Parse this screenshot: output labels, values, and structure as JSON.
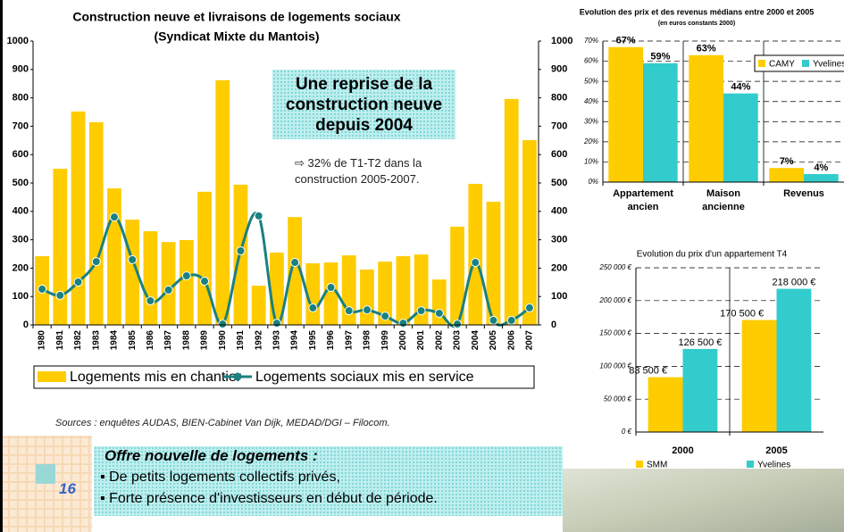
{
  "chart_data": [
    {
      "type": "bar",
      "title": "Construction neuve et livraisons de logements sociaux",
      "subtitle": "(Syndicat Mixte du Mantois)",
      "categories": [
        "1980",
        "1981",
        "1982",
        "1983",
        "1984",
        "1985",
        "1986",
        "1987",
        "1988",
        "1989",
        "1990",
        "1991",
        "1992",
        "1993",
        "1994",
        "1995",
        "1996",
        "1997",
        "1998",
        "1999",
        "2000",
        "2001",
        "2002",
        "2003",
        "2004",
        "2005",
        "2006",
        "2007"
      ],
      "series": [
        {
          "name": "Logements mis en chantier",
          "color": "#FFCC00",
          "values": [
            242,
            550,
            752,
            714,
            481,
            371,
            330,
            292,
            299,
            469,
            862,
            494,
            138,
            255,
            380,
            217,
            220,
            245,
            195,
            223,
            242,
            248,
            160,
            346,
            497,
            434,
            796,
            651
          ]
        },
        {
          "name": "Logements sociaux mis en service",
          "color": "#1A8080",
          "type": "line",
          "axis": "y2",
          "values": [
            126,
            104,
            151,
            223,
            380,
            230,
            85,
            123,
            173,
            154,
            3,
            261,
            384,
            6,
            220,
            60,
            132,
            50,
            53,
            31,
            6,
            50,
            41,
            3,
            220,
            16,
            16,
            60
          ]
        }
      ],
      "ylim": [
        0,
        1000
      ],
      "yticks": [
        0,
        100,
        200,
        300,
        400,
        500,
        600,
        700,
        800,
        900,
        1000
      ],
      "y2lim": [
        0,
        1000
      ],
      "y2ticks": [
        0,
        100,
        200,
        300,
        400,
        500,
        600,
        700,
        800,
        900,
        1000
      ],
      "grid": false,
      "legend": "bottom"
    },
    {
      "type": "bar",
      "title": "Evolution des prix et des revenus médians entre 2000 et 2005",
      "subtitle": "(en euros constants 2000)",
      "categories": [
        "Appartement ancien",
        "Maison ancienne",
        "Revenus"
      ],
      "series": [
        {
          "name": "CAMY",
          "color": "#FFCC00",
          "values": [
            67,
            63,
            7
          ],
          "value_labels": [
            "67%",
            "63%",
            "7%"
          ]
        },
        {
          "name": "Yvelines",
          "color": "#33CCCC",
          "values": [
            59,
            44,
            4
          ],
          "value_labels": [
            "59%",
            "44%",
            "4%"
          ]
        }
      ],
      "ylim": [
        0,
        70
      ],
      "yticks": [
        {
          "value": 0,
          "label": "0%"
        },
        {
          "value": 10,
          "label": "10%"
        },
        {
          "value": 20,
          "label": "20%"
        },
        {
          "value": 30,
          "label": "30%"
        },
        {
          "value": 40,
          "label": "40%"
        },
        {
          "value": 50,
          "label": "50%"
        },
        {
          "value": 60,
          "label": "60%"
        },
        {
          "value": 70,
          "label": "70%"
        }
      ],
      "grid": true,
      "legend": "top-right"
    },
    {
      "type": "bar",
      "title": "Evolution du prix d'un appartement T4",
      "categories": [
        "2000",
        "2005"
      ],
      "series": [
        {
          "name": "SMM",
          "color": "#FFCC00",
          "values": [
            83500,
            170500
          ],
          "value_labels": [
            "83 500 €",
            "170 500 €"
          ]
        },
        {
          "name": "Yvelines",
          "color": "#33CCCC",
          "values": [
            126500,
            218000
          ],
          "value_labels": [
            "126 500 €",
            "218 000 €"
          ]
        }
      ],
      "ylim": [
        0,
        250000
      ],
      "yticks": [
        {
          "value": 0,
          "label": "0 €"
        },
        {
          "value": 50000,
          "label": "50 000 €"
        },
        {
          "value": 100000,
          "label": "100 000 €"
        },
        {
          "value": 150000,
          "label": "150 000 €"
        },
        {
          "value": 200000,
          "label": "200 000 €"
        },
        {
          "value": 250000,
          "label": "250 000 €"
        }
      ],
      "grid": true,
      "legend": "bottom"
    }
  ],
  "slide": {
    "callout": "Une reprise de la construction neuve depuis 2004",
    "note": "⇨ 32% de T1-T2 dans la construction 2005-2007.",
    "sources": "Sources : enquêtes AUDAS, BIEN-Cabinet Van Dijk, MEDAD/DGI – Filocom.",
    "box_title": "Offre nouvelle de logements :",
    "bullets": [
      "De petits logements collectifs privés,",
      "Forte présence d'investisseurs en début de période."
    ],
    "page_number": "16"
  }
}
